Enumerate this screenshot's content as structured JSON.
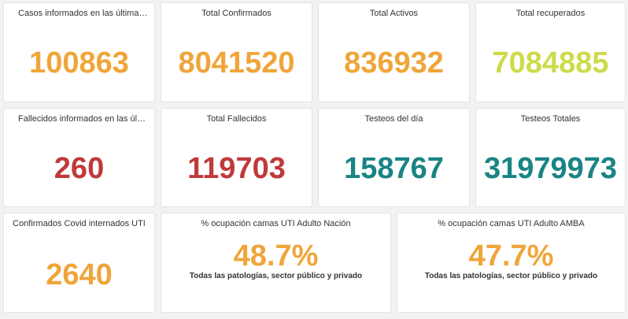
{
  "colors": {
    "orange": "#f0a53a",
    "yellow_green": "#cddb4a",
    "red": "#c0393b",
    "teal": "#1a8484"
  },
  "cards": [
    {
      "title": "Casos informados en las últimas 2...",
      "value": "100863"
    },
    {
      "title": "Total Confirmados",
      "value": "8041520"
    },
    {
      "title": "Total Activos",
      "value": "836932"
    },
    {
      "title": "Total recuperados",
      "value": "7084885"
    },
    {
      "title": "Fallecidos informados en las últim...",
      "value": "260"
    },
    {
      "title": "Total Fallecidos",
      "value": "119703"
    },
    {
      "title": "Testeos del día",
      "value": "158767"
    },
    {
      "title": "Testeos Totales",
      "value": "31979973"
    },
    {
      "title": "Confirmados Covid internados UTI",
      "value": "2640"
    },
    {
      "title": "% ocupación camas UTI Adulto Nación",
      "value": "48.7%",
      "subtitle": "Todas las patologías, sector público y privado"
    },
    {
      "title": "% ocupación camas UTI Adulto AMBA",
      "value": "47.7%",
      "subtitle": "Todas las patologías, sector público y privado"
    }
  ]
}
